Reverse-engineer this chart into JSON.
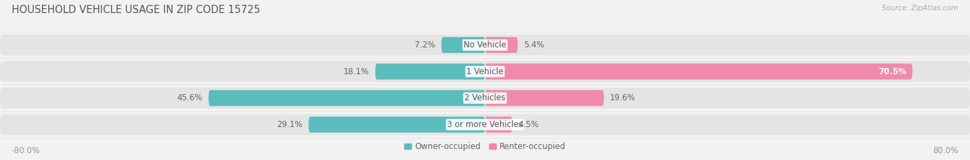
{
  "title": "HOUSEHOLD VEHICLE USAGE IN ZIP CODE 15725",
  "source": "Source: ZipAtlas.com",
  "categories": [
    "No Vehicle",
    "1 Vehicle",
    "2 Vehicles",
    "3 or more Vehicles"
  ],
  "owner_values": [
    7.2,
    18.1,
    45.6,
    29.1
  ],
  "renter_values": [
    5.4,
    70.5,
    19.6,
    4.5
  ],
  "owner_color": "#5bbcbd",
  "renter_color": "#f08aaa",
  "owner_color_light": "#b2e0e0",
  "renter_color_light": "#f7bdd0",
  "bar_height": 0.6,
  "bg_bar_height": 0.78,
  "xlim": [
    -80,
    80
  ],
  "background_color": "#f2f2f2",
  "bar_bg_color": "#e4e4e4",
  "title_fontsize": 10.5,
  "source_fontsize": 7.5,
  "label_fontsize": 8.5,
  "category_fontsize": 8.5,
  "legend_fontsize": 8.5,
  "axis_label_fontsize": 8.5
}
